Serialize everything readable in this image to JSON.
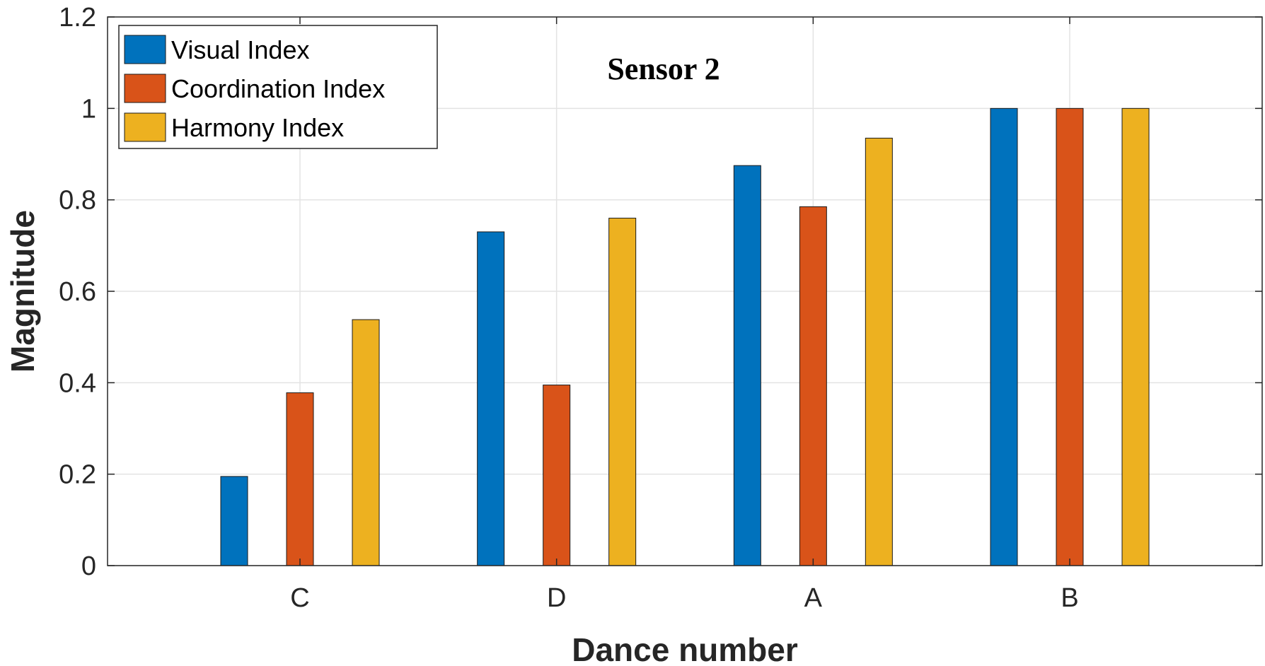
{
  "chart_data": {
    "type": "bar",
    "title": "Sensor 2",
    "xlabel": "Dance number",
    "ylabel": "Magnitude",
    "categories": [
      "C",
      "D",
      "A",
      "B"
    ],
    "ylim": [
      0,
      1.2
    ],
    "yticks": [
      "0",
      "0.2",
      "0.4",
      "0.6",
      "0.8",
      "1",
      "1.2"
    ],
    "grid": true,
    "legend_position": "top-left",
    "series": [
      {
        "name": "Visual Index",
        "color": "#0072BD",
        "values": [
          0.195,
          0.73,
          0.875,
          1.0
        ]
      },
      {
        "name": "Coordination Index",
        "color": "#D95319",
        "values": [
          0.378,
          0.395,
          0.785,
          1.0
        ]
      },
      {
        "name": "Harmony Index",
        "color": "#EDB120",
        "values": [
          0.538,
          0.76,
          0.935,
          1.0
        ]
      }
    ]
  }
}
